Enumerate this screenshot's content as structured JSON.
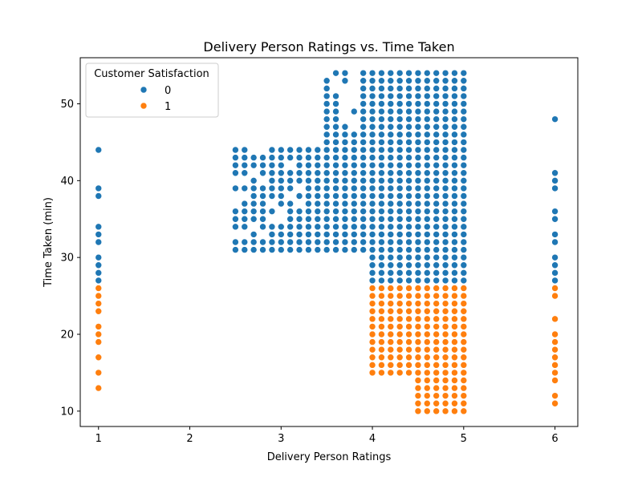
{
  "chart_data": {
    "type": "scatter",
    "title": "Delivery Person Ratings vs. Time Taken",
    "xlabel": "Delivery Person Ratings",
    "ylabel": "Time Taken (min)",
    "xlim": [
      0.8,
      6.25
    ],
    "ylim": [
      8,
      56
    ],
    "xticks": [
      "1",
      "2",
      "3",
      "4",
      "5",
      "6"
    ],
    "yticks": [
      "10",
      "20",
      "30",
      "40",
      "50"
    ],
    "grid": false,
    "legend": {
      "title": "Customer Satisfaction",
      "placement": "top-left"
    },
    "series": [
      {
        "name": "0",
        "color": "#1f77b4",
        "points": [
          [
            1,
            27
          ],
          [
            1,
            28
          ],
          [
            1,
            29
          ],
          [
            1,
            30
          ],
          [
            1,
            32
          ],
          [
            1,
            33
          ],
          [
            1,
            34
          ],
          [
            1,
            38
          ],
          [
            1,
            39
          ],
          [
            1,
            44
          ],
          [
            6,
            27
          ],
          [
            6,
            28
          ],
          [
            6,
            29
          ],
          [
            6,
            30
          ],
          [
            6,
            32
          ],
          [
            6,
            33
          ],
          [
            6,
            35
          ],
          [
            6,
            36
          ],
          [
            6,
            39
          ],
          [
            6,
            40
          ],
          [
            6,
            41
          ],
          [
            6,
            48
          ],
          [
            2.5,
            31
          ],
          [
            2.5,
            32
          ],
          [
            2.5,
            34
          ],
          [
            2.5,
            35
          ],
          [
            2.5,
            36
          ],
          [
            2.5,
            39
          ],
          [
            2.5,
            41
          ],
          [
            2.5,
            42
          ],
          [
            2.5,
            43
          ],
          [
            2.5,
            44
          ],
          [
            2.6,
            31
          ],
          [
            2.6,
            32
          ],
          [
            2.6,
            34
          ],
          [
            2.6,
            35
          ],
          [
            2.6,
            36
          ],
          [
            2.6,
            37
          ],
          [
            2.6,
            39
          ],
          [
            2.6,
            41
          ],
          [
            2.6,
            42
          ],
          [
            2.6,
            43
          ],
          [
            2.6,
            44
          ],
          [
            2.7,
            31
          ],
          [
            2.7,
            32
          ],
          [
            2.7,
            33
          ],
          [
            2.7,
            35
          ],
          [
            2.7,
            36
          ],
          [
            2.7,
            37
          ],
          [
            2.7,
            38
          ],
          [
            2.7,
            39
          ],
          [
            2.7,
            40
          ],
          [
            2.7,
            42
          ],
          [
            2.7,
            43
          ],
          [
            2.8,
            31
          ],
          [
            2.8,
            32
          ],
          [
            2.8,
            34
          ],
          [
            2.8,
            35
          ],
          [
            2.8,
            36
          ],
          [
            2.8,
            37
          ],
          [
            2.8,
            38
          ],
          [
            2.8,
            39
          ],
          [
            2.8,
            41
          ],
          [
            2.8,
            42
          ],
          [
            2.8,
            43
          ],
          [
            2.9,
            31
          ],
          [
            2.9,
            32
          ],
          [
            2.9,
            33
          ],
          [
            2.9,
            34
          ],
          [
            2.9,
            36
          ],
          [
            2.9,
            38
          ],
          [
            2.9,
            39
          ],
          [
            2.9,
            40
          ],
          [
            2.9,
            41
          ],
          [
            2.9,
            42
          ],
          [
            2.9,
            43
          ],
          [
            2.9,
            44
          ],
          [
            4.1,
            49
          ],
          [
            4.2,
            49
          ],
          [
            3.8,
            49
          ],
          [
            3.9,
            49
          ],
          [
            3.7,
            53
          ],
          [
            3.6,
            54
          ],
          [
            3.7,
            54
          ]
        ],
        "rects": [
          {
            "x": [
              3.0,
              3.4
            ],
            "y": [
              31,
              44
            ],
            "step": 0.1,
            "omit": [
              [
                3.0,
                35
              ],
              [
                3.0,
                36
              ],
              [
                3.1,
                38
              ],
              [
                3.2,
                37
              ],
              [
                3.2,
                39
              ],
              [
                3.1,
                42
              ]
            ]
          },
          {
            "x": [
              3.5,
              3.9
            ],
            "y": [
              31,
              47
            ],
            "omit": [
              [
                3.8,
                47
              ],
              [
                3.9,
                47
              ]
            ]
          },
          {
            "x": [
              3.5,
              3.6
            ],
            "y": [
              48,
              53
            ],
            "omit": [
              [
                3.6,
                52
              ],
              [
                3.6,
                53
              ]
            ]
          },
          {
            "x": [
              3.9,
              5.0
            ],
            "y": [
              27,
              54
            ],
            "omit": [
              [
                3.9,
                27
              ],
              [
                3.9,
                28
              ],
              [
                3.9,
                29
              ],
              [
                3.9,
                30
              ]
            ]
          }
        ]
      },
      {
        "name": "1",
        "color": "#ff7f0e",
        "points": [
          [
            1,
            13
          ],
          [
            1,
            15
          ],
          [
            1,
            17
          ],
          [
            1,
            19
          ],
          [
            1,
            20
          ],
          [
            1,
            21
          ],
          [
            1,
            23
          ],
          [
            1,
            24
          ],
          [
            1,
            25
          ],
          [
            1,
            26
          ],
          [
            6,
            11
          ],
          [
            6,
            12
          ],
          [
            6,
            14
          ],
          [
            6,
            15
          ],
          [
            6,
            16
          ],
          [
            6,
            17
          ],
          [
            6,
            18
          ],
          [
            6,
            19
          ],
          [
            6,
            20
          ],
          [
            6,
            22
          ],
          [
            6,
            25
          ],
          [
            6,
            26
          ]
        ],
        "rects": [
          {
            "x": [
              4.0,
              4.4
            ],
            "y": [
              15,
              26
            ]
          },
          {
            "x": [
              4.5,
              5.0
            ],
            "y": [
              10,
              26
            ]
          }
        ]
      }
    ]
  }
}
